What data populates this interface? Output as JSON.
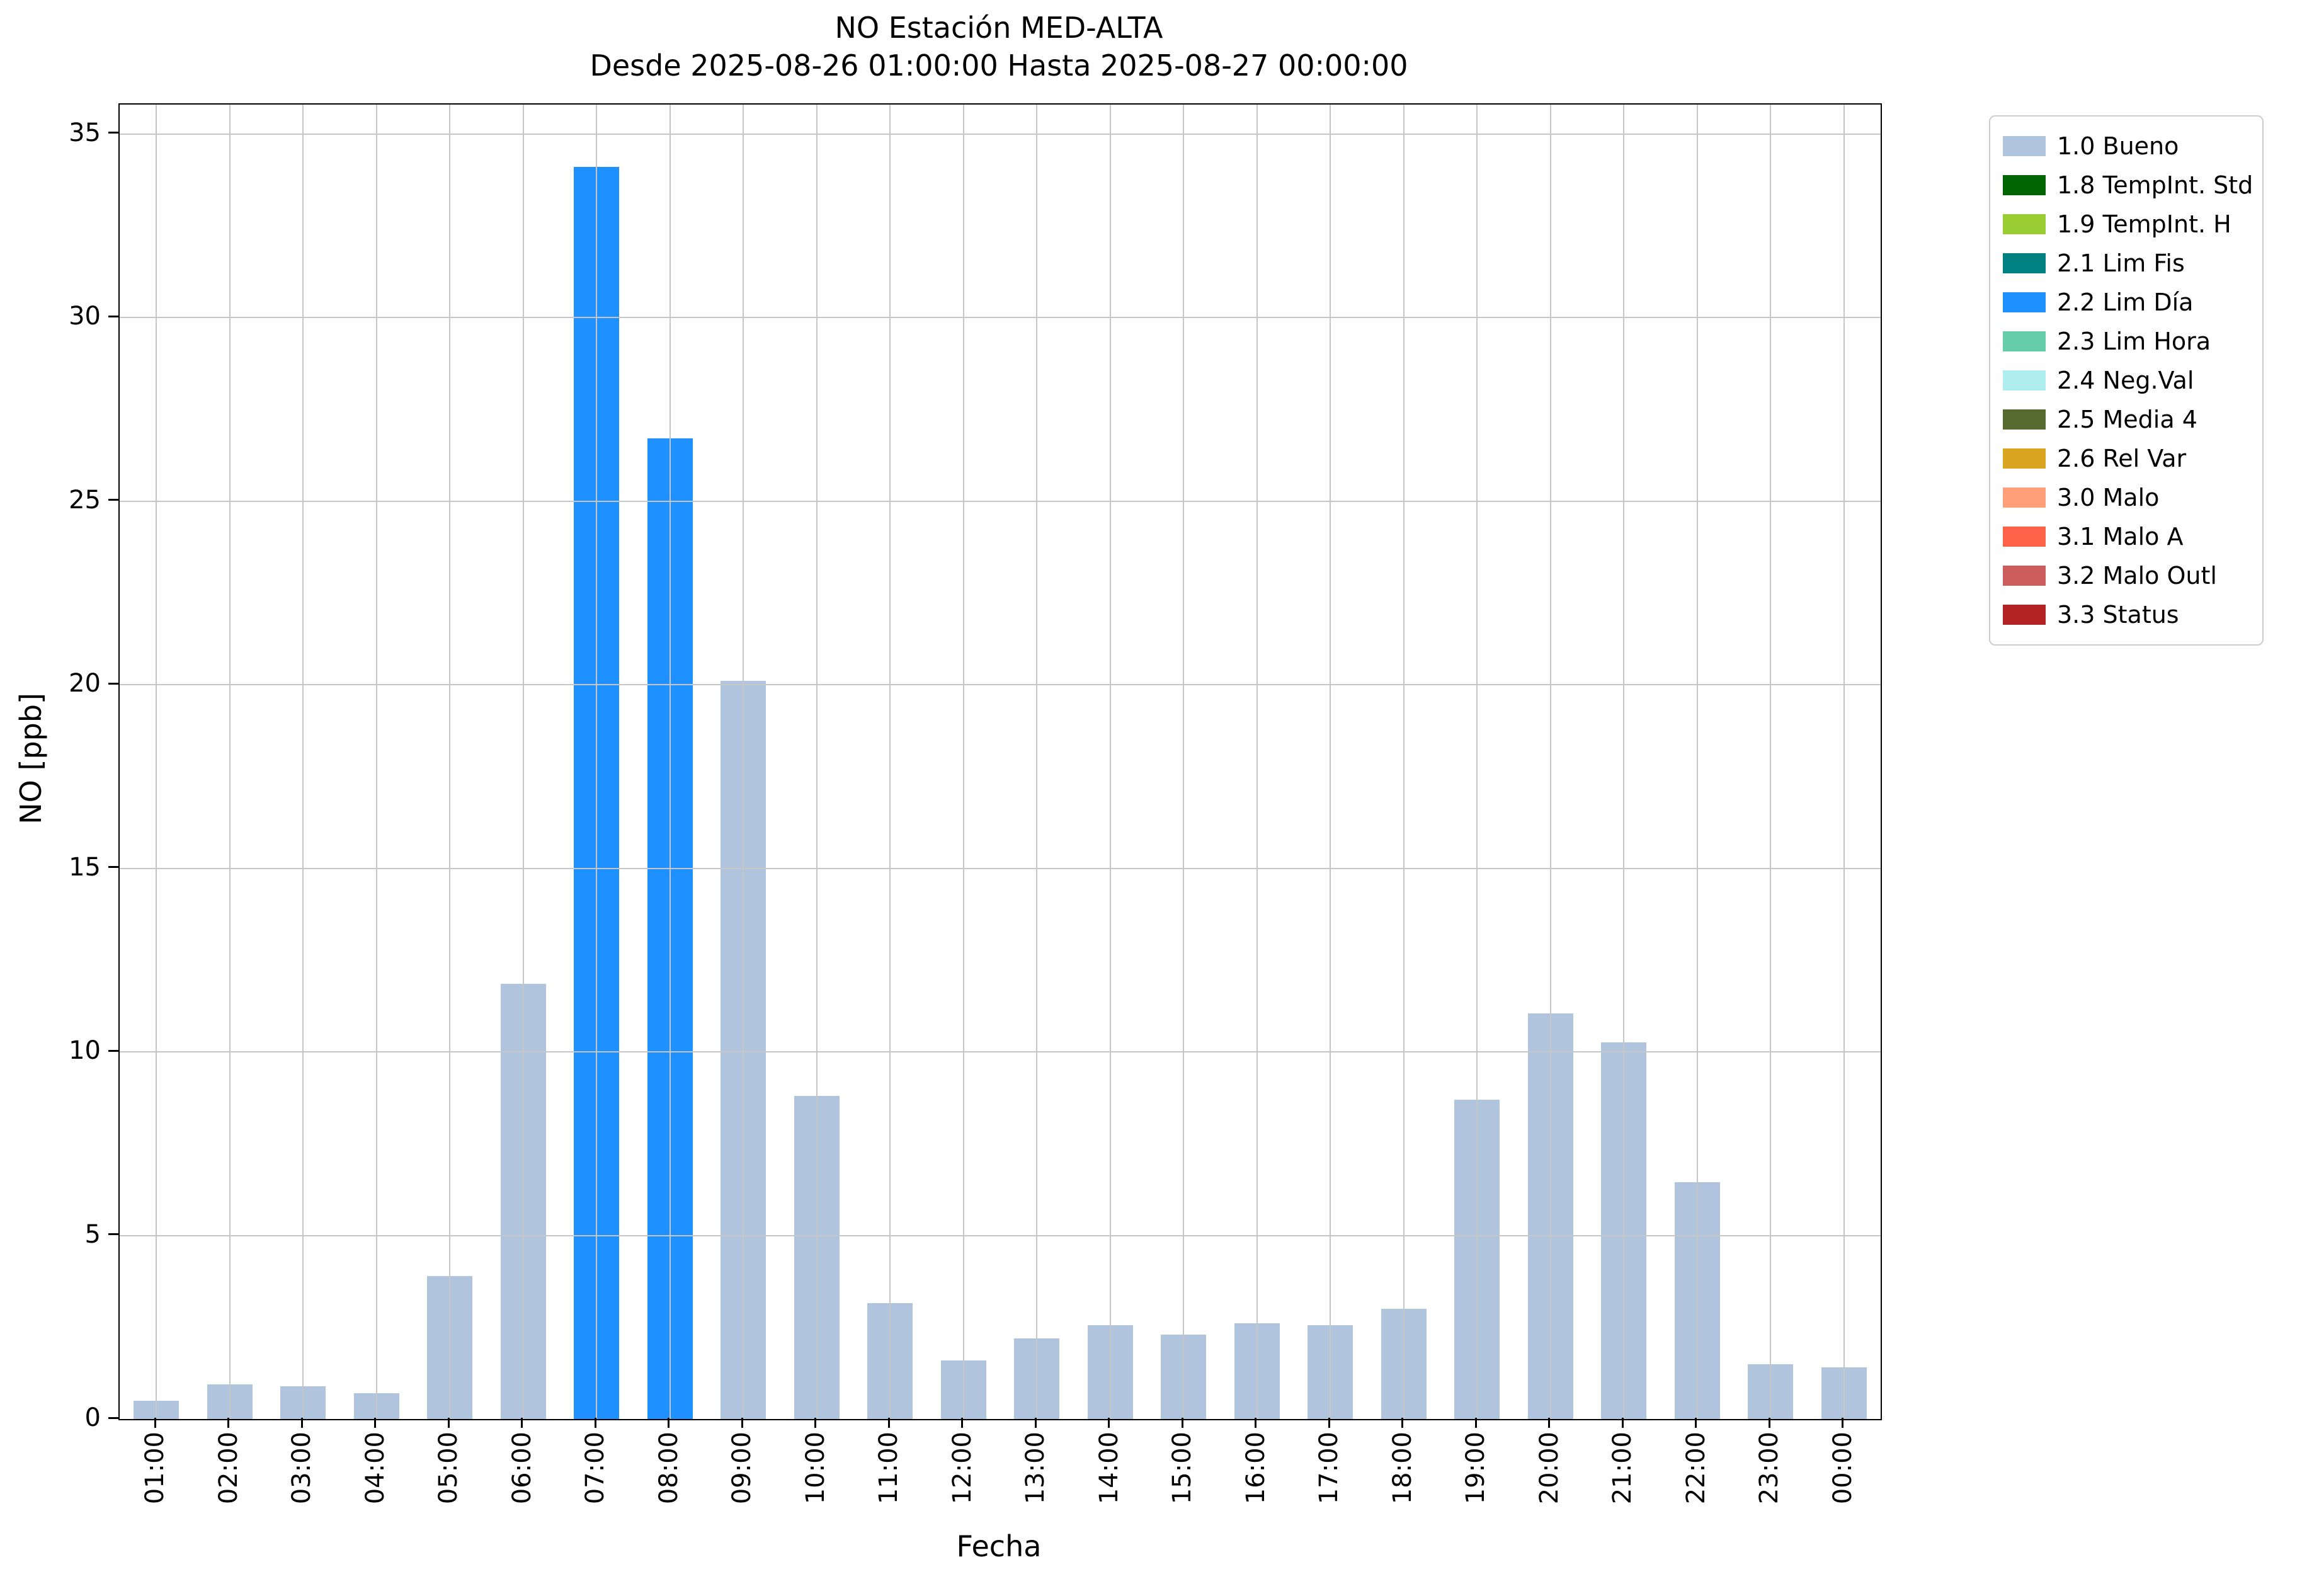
{
  "chart_data": {
    "type": "bar",
    "title": "NO Estación MED-ALTA",
    "subtitle": "Desde 2025-08-26 01:00:00 Hasta 2025-08-27 00:00:00",
    "xlabel": "Fecha",
    "ylabel": "NO [ppb]",
    "ylim": [
      0,
      35.8
    ],
    "yticks": [
      0,
      5,
      10,
      15,
      20,
      25,
      30,
      35
    ],
    "grid": true,
    "legend_position": "outside-right",
    "categories": [
      "01:00",
      "02:00",
      "03:00",
      "04:00",
      "05:00",
      "06:00",
      "07:00",
      "08:00",
      "09:00",
      "10:00",
      "11:00",
      "12:00",
      "13:00",
      "14:00",
      "15:00",
      "16:00",
      "17:00",
      "18:00",
      "19:00",
      "20:00",
      "21:00",
      "22:00",
      "23:00",
      "00:00"
    ],
    "values": [
      0.5,
      0.95,
      0.9,
      0.7,
      3.9,
      11.85,
      34.1,
      26.7,
      20.1,
      8.8,
      3.15,
      1.6,
      2.2,
      2.55,
      2.3,
      2.6,
      2.55,
      3.0,
      8.7,
      11.05,
      10.25,
      6.45,
      1.5,
      1.4
    ],
    "statuses": [
      "1.0 Bueno",
      "1.0 Bueno",
      "1.0 Bueno",
      "1.0 Bueno",
      "1.0 Bueno",
      "1.0 Bueno",
      "2.2 Lim Día",
      "2.2 Lim Día",
      "1.0 Bueno",
      "1.0 Bueno",
      "1.0 Bueno",
      "1.0 Bueno",
      "1.0 Bueno",
      "1.0 Bueno",
      "1.0 Bueno",
      "1.0 Bueno",
      "1.0 Bueno",
      "1.0 Bueno",
      "1.0 Bueno",
      "1.0 Bueno",
      "1.0 Bueno",
      "1.0 Bueno",
      "1.0 Bueno",
      "1.0 Bueno"
    ],
    "legend": [
      {
        "label": "1.0 Bueno",
        "color": "#B0C4DE"
      },
      {
        "label": "1.8 TempInt. Std",
        "color": "#006400"
      },
      {
        "label": "1.9 TempInt. H",
        "color": "#9ACD32"
      },
      {
        "label": "2.1 Lim Fis",
        "color": "#008080"
      },
      {
        "label": "2.2 Lim Día",
        "color": "#1E90FF"
      },
      {
        "label": "2.3 Lim Hora",
        "color": "#66CDAA"
      },
      {
        "label": "2.4 Neg.Val",
        "color": "#AFEEEE"
      },
      {
        "label": "2.5 Media 4",
        "color": "#556B2F"
      },
      {
        "label": "2.6 Rel Var",
        "color": "#DAA520"
      },
      {
        "label": "3.0 Malo",
        "color": "#FFA07A"
      },
      {
        "label": "3.1 Malo A",
        "color": "#FF6347"
      },
      {
        "label": "3.2 Malo Outl",
        "color": "#CD5C5C"
      },
      {
        "label": "3.3 Status",
        "color": "#B22222"
      }
    ]
  }
}
